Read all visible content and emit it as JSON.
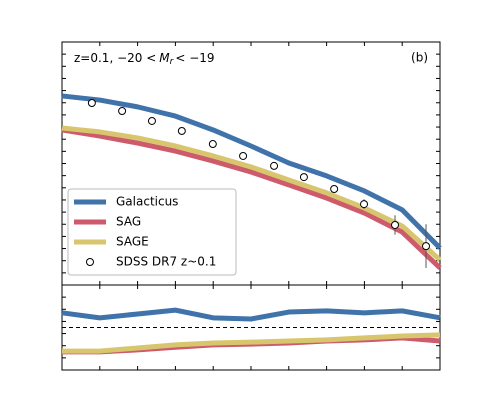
{
  "chart_data": [
    {
      "type": "line",
      "annotation": {
        "prefix": "z=0.1, −20 <",
        "symbol": "M",
        "subscript": "r",
        "suffix": "< −19"
      },
      "panel_label": "(b)",
      "xlim": [
        0,
        10
      ],
      "ylim": [
        0,
        10
      ],
      "x": [
        0,
        1,
        2,
        3,
        4,
        5,
        6,
        7,
        8,
        9,
        10
      ],
      "series": [
        {
          "name": "Galacticus",
          "color": "#3f73aa",
          "values": [
            7.78,
            7.61,
            7.33,
            6.95,
            6.38,
            5.72,
            5.02,
            4.49,
            3.87,
            3.09,
            1.52
          ]
        },
        {
          "name": "SAG",
          "color": "#cd5b6c",
          "values": [
            6.38,
            6.13,
            5.84,
            5.51,
            5.1,
            4.65,
            4.12,
            3.58,
            2.96,
            2.18,
            0.7
          ]
        },
        {
          "name": "SAGE",
          "color": "#d8c66e",
          "values": [
            6.46,
            6.3,
            6.05,
            5.72,
            5.31,
            4.86,
            4.32,
            3.79,
            3.17,
            2.43,
            1.03
          ]
        }
      ],
      "points": {
        "name": "SDSS DR7 z~0.1",
        "x": [
          0.79,
          1.59,
          2.38,
          3.17,
          3.99,
          4.79,
          5.61,
          6.4,
          7.2,
          7.99,
          8.81,
          9.63
        ],
        "values": [
          7.49,
          7.16,
          6.75,
          6.34,
          5.8,
          5.31,
          4.9,
          4.44,
          3.95,
          3.33,
          2.47,
          1.6
        ],
        "errors": [
          0.05,
          0.05,
          0.05,
          0.05,
          0.08,
          0.08,
          0.1,
          0.1,
          0.15,
          0.2,
          0.4,
          0.9
        ]
      },
      "legend": "lower left"
    },
    {
      "type": "line",
      "xlim": [
        0,
        10
      ],
      "ylim": [
        -1.1,
        1.1
      ],
      "reference_line": 0,
      "x": [
        0,
        1,
        2,
        3,
        4,
        5,
        6,
        7,
        8,
        9,
        10
      ],
      "series": [
        {
          "name": "Galacticus",
          "color": "#3f73aa",
          "values": [
            0.38,
            0.25,
            0.35,
            0.45,
            0.25,
            0.22,
            0.4,
            0.43,
            0.38,
            0.43,
            0.25
          ]
        },
        {
          "name": "SAG",
          "color": "#cd5b6c",
          "values": [
            -0.63,
            -0.63,
            -0.58,
            -0.51,
            -0.45,
            -0.43,
            -0.4,
            -0.35,
            -0.32,
            -0.27,
            -0.35
          ]
        },
        {
          "name": "SAGE",
          "color": "#d8c66e",
          "values": [
            -0.61,
            -0.61,
            -0.53,
            -0.45,
            -0.4,
            -0.38,
            -0.35,
            -0.32,
            -0.27,
            -0.22,
            -0.19
          ]
        }
      ]
    }
  ]
}
